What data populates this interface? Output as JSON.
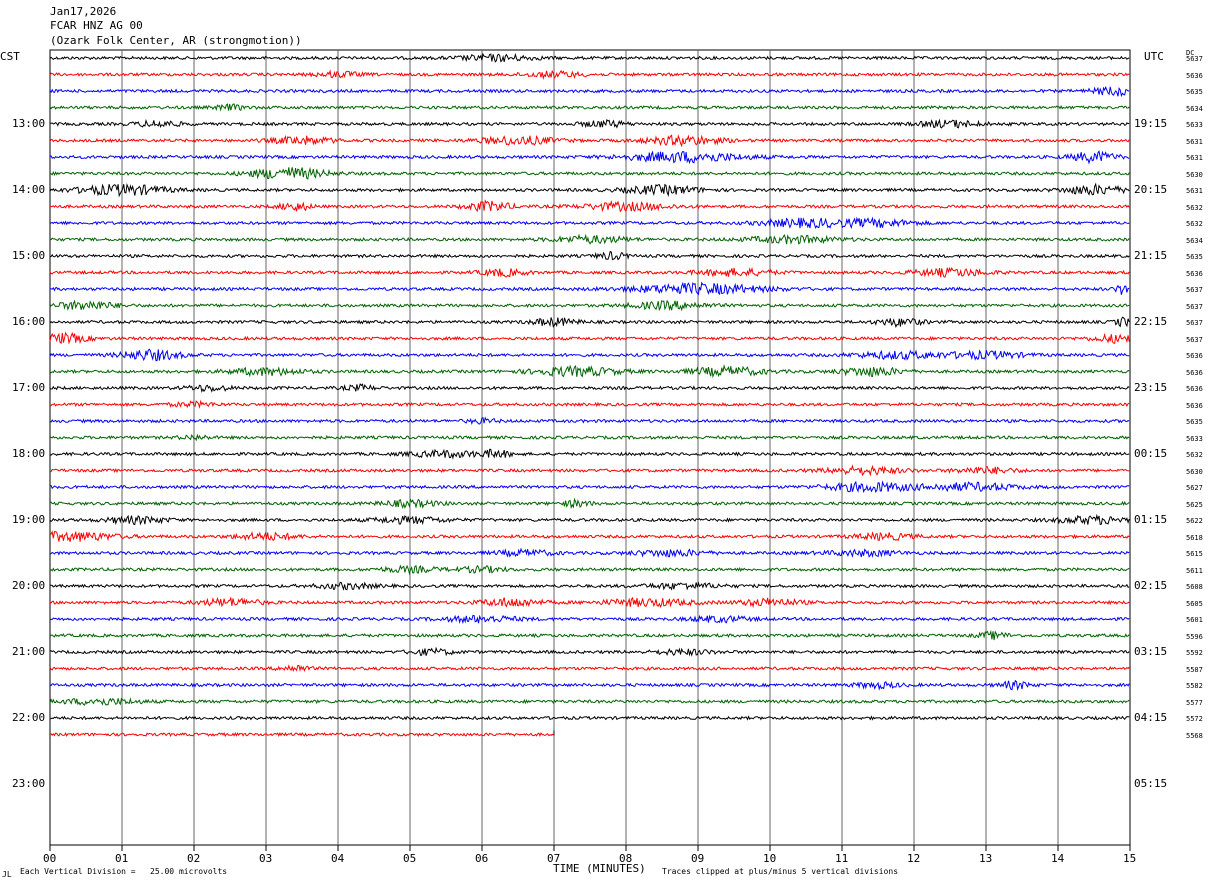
{
  "header": {
    "date": "Jan17,2026",
    "station": "FCAR HNZ AG 00",
    "location": "(Ozark Folk Center, AR (strongmotion))"
  },
  "axis": {
    "left_tz": "CST",
    "right_tz": "UTC",
    "dc_label": "DC",
    "xlabel": "TIME (MINUTES)",
    "xticks": [
      "00",
      "01",
      "02",
      "03",
      "04",
      "05",
      "06",
      "07",
      "08",
      "09",
      "10",
      "11",
      "12",
      "13",
      "14",
      "15"
    ],
    "left_hours": [
      "13:00",
      "14:00",
      "15:00",
      "16:00",
      "17:00",
      "18:00",
      "19:00",
      "20:00",
      "21:00",
      "22:00",
      "23:00"
    ],
    "right_hours": [
      "19:15",
      "20:15",
      "21:15",
      "22:15",
      "23:15",
      "00:15",
      "01:15",
      "02:15",
      "03:15",
      "04:15",
      "05:15"
    ]
  },
  "footer": {
    "left_mark": "JL",
    "scale": "Each Vertical Division =   25.00 microvolts",
    "clip": "Traces clipped at plus/minus 5 vertical divisions"
  },
  "colors": {
    "cycle": [
      "#000000",
      "#ff0000",
      "#0000ff",
      "#006400"
    ],
    "grid": "#666666"
  },
  "chart_data": {
    "type": "line",
    "x_range_minutes": [
      0,
      15
    ],
    "trace_minutes": 15,
    "traces_per_hour": 4,
    "last_trace_end_minute": 7.0,
    "dc_offsets": [
      "5637",
      "5636",
      "5635",
      "5634",
      "5633",
      "5631",
      "5631",
      "5630",
      "5631",
      "5632",
      "5632",
      "5634",
      "5635",
      "5636",
      "5637",
      "5637",
      "5637",
      "5637",
      "5636",
      "5636",
      "5636",
      "5636",
      "5635",
      "5633",
      "5632",
      "5630",
      "5627",
      "5625",
      "5622",
      "5618",
      "5615",
      "5611",
      "5608",
      "5605",
      "5601",
      "5596",
      "5592",
      "5587",
      "5582",
      "5577",
      "5572",
      "5568"
    ],
    "bursts": [
      [
        [
          6.2,
          0.5,
          1.8
        ]
      ],
      [
        [
          4.0,
          0.3,
          1.5
        ],
        [
          7.0,
          0.4,
          1.6
        ]
      ],
      [
        [
          14.8,
          0.3,
          2.5
        ]
      ],
      [
        [
          2.5,
          0.2,
          1.5
        ]
      ],
      [
        [
          1.5,
          0.3,
          1.8
        ],
        [
          7.7,
          0.3,
          1.8
        ],
        [
          12.5,
          0.4,
          2.0
        ]
      ],
      [
        [
          3.5,
          0.4,
          2.2
        ],
        [
          6.5,
          0.5,
          2.4
        ],
        [
          8.8,
          0.5,
          2.6
        ]
      ],
      [
        [
          8.8,
          0.8,
          3.0
        ],
        [
          14.5,
          0.3,
          3.0
        ]
      ],
      [
        [
          3.3,
          0.5,
          3.5
        ]
      ],
      [
        [
          1.0,
          0.6,
          3.0
        ],
        [
          8.5,
          0.5,
          2.5
        ],
        [
          14.5,
          0.4,
          2.8
        ]
      ],
      [
        [
          3.4,
          0.2,
          2.5
        ],
        [
          6.1,
          0.3,
          2.8
        ],
        [
          8.0,
          0.6,
          2.2
        ]
      ],
      [
        [
          10.5,
          0.6,
          2.4
        ],
        [
          11.5,
          0.5,
          2.0
        ]
      ],
      [
        [
          7.5,
          0.5,
          2.0
        ],
        [
          10.3,
          0.6,
          2.0
        ]
      ],
      [
        [
          7.8,
          0.2,
          2.0
        ]
      ],
      [
        [
          6.3,
          0.3,
          2.0
        ],
        [
          9.5,
          0.5,
          2.0
        ],
        [
          12.5,
          0.5,
          2.2
        ]
      ],
      [
        [
          9.0,
          0.9,
          3.0
        ],
        [
          14.9,
          0.1,
          3.0
        ]
      ],
      [
        [
          0.5,
          0.4,
          2.5
        ],
        [
          8.6,
          0.5,
          2.2
        ]
      ],
      [
        [
          7.0,
          0.3,
          2.2
        ],
        [
          11.8,
          0.3,
          2.2
        ],
        [
          14.9,
          0.1,
          2.5
        ]
      ],
      [
        [
          0.2,
          0.3,
          2.8
        ],
        [
          14.8,
          0.3,
          2.2
        ]
      ],
      [
        [
          1.4,
          0.4,
          3.0
        ],
        [
          11.8,
          0.6,
          2.0
        ],
        [
          13.0,
          0.5,
          2.0
        ]
      ],
      [
        [
          3.0,
          0.5,
          2.0
        ],
        [
          7.3,
          0.6,
          2.6
        ],
        [
          9.4,
          0.5,
          2.6
        ],
        [
          11.4,
          0.4,
          2.6
        ]
      ],
      [
        [
          2.2,
          0.3,
          1.6
        ],
        [
          4.3,
          0.2,
          1.6
        ]
      ],
      [
        [
          2.0,
          0.3,
          1.2
        ]
      ],
      [
        [
          6.0,
          0.2,
          1.3
        ]
      ],
      [
        [
          2.0,
          0.2,
          1.2
        ]
      ],
      [
        [
          5.5,
          0.5,
          1.8
        ],
        [
          6.2,
          0.2,
          2.0
        ]
      ],
      [
        [
          11.3,
          0.5,
          2.2
        ],
        [
          13.0,
          0.4,
          1.8
        ]
      ],
      [
        [
          11.4,
          0.6,
          2.6
        ],
        [
          12.8,
          0.6,
          2.2
        ]
      ],
      [
        [
          5.0,
          0.4,
          1.8
        ],
        [
          7.3,
          0.2,
          1.8
        ]
      ],
      [
        [
          1.2,
          0.4,
          2.0
        ],
        [
          5.0,
          0.5,
          1.8
        ],
        [
          14.5,
          0.5,
          2.2
        ]
      ],
      [
        [
          0.3,
          0.6,
          2.6
        ],
        [
          3.0,
          0.4,
          2.0
        ],
        [
          11.6,
          0.4,
          1.8
        ]
      ],
      [
        [
          6.6,
          0.4,
          1.6
        ],
        [
          8.6,
          0.5,
          1.8
        ],
        [
          11.3,
          0.5,
          1.6
        ]
      ],
      [
        [
          5.0,
          0.4,
          1.6
        ],
        [
          6.0,
          0.3,
          1.6
        ]
      ],
      [
        [
          4.1,
          0.4,
          1.6
        ],
        [
          8.8,
          0.5,
          1.6
        ]
      ],
      [
        [
          2.5,
          0.4,
          2.2
        ],
        [
          6.4,
          0.4,
          2.4
        ],
        [
          8.3,
          0.6,
          2.2
        ],
        [
          10.0,
          0.4,
          2.2
        ]
      ],
      [
        [
          6.0,
          0.5,
          1.8
        ],
        [
          9.3,
          0.4,
          1.6
        ]
      ],
      [
        [
          13.1,
          0.2,
          2.0
        ]
      ],
      [
        [
          5.3,
          0.3,
          1.6
        ],
        [
          8.8,
          0.4,
          1.4
        ]
      ],
      [
        [
          3.4,
          0.2,
          1.8
        ]
      ],
      [
        [
          11.5,
          0.3,
          1.6
        ],
        [
          13.4,
          0.2,
          2.2
        ]
      ],
      [
        [
          0.7,
          0.5,
          1.8
        ]
      ]
    ]
  }
}
